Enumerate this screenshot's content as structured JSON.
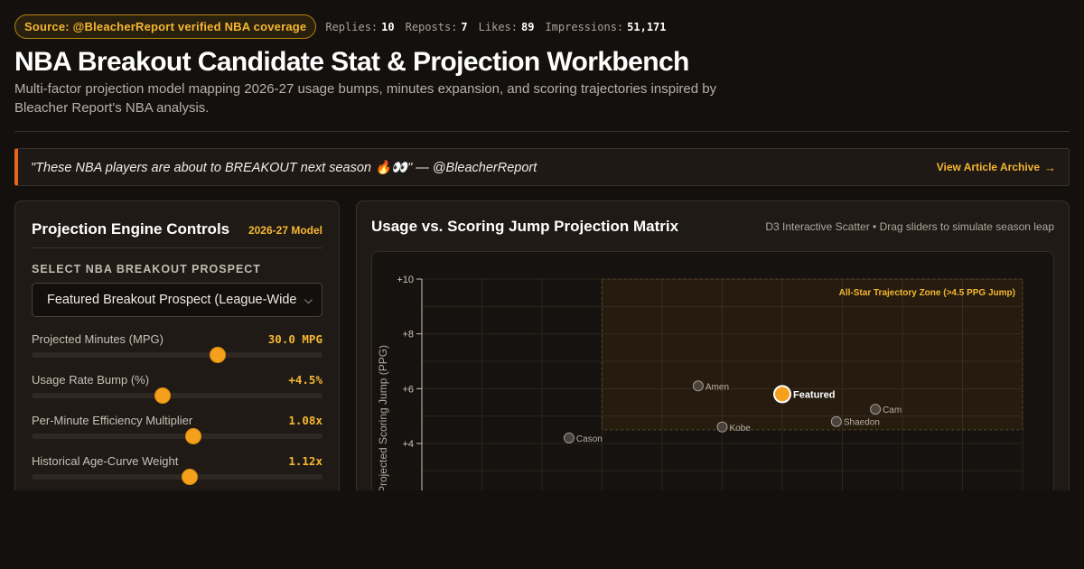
{
  "header": {
    "source_badge": "Source: @BleacherReport verified NBA coverage",
    "metrics": [
      {
        "label": "Replies:",
        "value": "10"
      },
      {
        "label": "Reposts:",
        "value": "7"
      },
      {
        "label": "Likes:",
        "value": "89"
      },
      {
        "label": "Impressions:",
        "value": "51,171"
      }
    ],
    "title": "NBA Breakout Candidate Stat & Projection Workbench",
    "subtitle": "Multi-factor projection model mapping 2026-27 usage bumps, minutes expansion, and scoring trajectories inspired by Bleacher Report's NBA analysis."
  },
  "banner": {
    "quote": "\"These NBA players are about to BREAKOUT next season 🔥👀\" — @BleacherReport",
    "link_label": "View Article Archive",
    "link_arrow": "→"
  },
  "controls": {
    "title": "Projection Engine Controls",
    "badge": "2026-27 Model",
    "select_label": "SELECT NBA BREAKOUT PROSPECT",
    "select_value": "Featured Breakout Prospect (League-Wide Pick)",
    "sliders": [
      {
        "label": "Projected Minutes (MPG)",
        "value": "30.0 MPG",
        "fill": 0.64
      },
      {
        "label": "Usage Rate Bump (%)",
        "value": "+4.5%",
        "fill": 0.45
      },
      {
        "label": "Per-Minute Efficiency Multiplier",
        "value": "1.08x",
        "fill": 0.555
      },
      {
        "label": "Historical Age-Curve Weight",
        "value": "1.12x",
        "fill": 0.545
      }
    ]
  },
  "chart": {
    "title": "Usage vs. Scoring Jump Projection Matrix",
    "caption": "D3 Interactive Scatter • Drag sliders to simulate season leap"
  },
  "chart_data": {
    "type": "scatter",
    "title": "Usage vs. Scoring Jump Projection Matrix",
    "ylabel": "Projected Scoring Jump (PPG)",
    "xlabel": "",
    "ylim": [
      2.5,
      10
    ],
    "xlim": [
      0,
      10
    ],
    "y_ticks": [
      "+10",
      "+8",
      "+6",
      "+4"
    ],
    "y_tick_values": [
      10,
      8,
      6,
      4
    ],
    "grid": true,
    "zone": {
      "label": "All-Star Trajectory Zone (>4.5 PPG Jump)",
      "x_from": 3,
      "x_to": 10,
      "y_from": 4.5,
      "y_to": 10
    },
    "points": [
      {
        "name": "Cason",
        "x": 2.45,
        "y": 4.2,
        "featured": false
      },
      {
        "name": "Amen",
        "x": 4.6,
        "y": 6.1,
        "featured": false
      },
      {
        "name": "Kobe",
        "x": 5.0,
        "y": 4.6,
        "featured": false
      },
      {
        "name": "Featured",
        "x": 6.0,
        "y": 5.8,
        "featured": true
      },
      {
        "name": "Shaedon",
        "x": 6.9,
        "y": 4.8,
        "featured": false
      },
      {
        "name": "Cam",
        "x": 7.55,
        "y": 5.25,
        "featured": false
      }
    ]
  }
}
